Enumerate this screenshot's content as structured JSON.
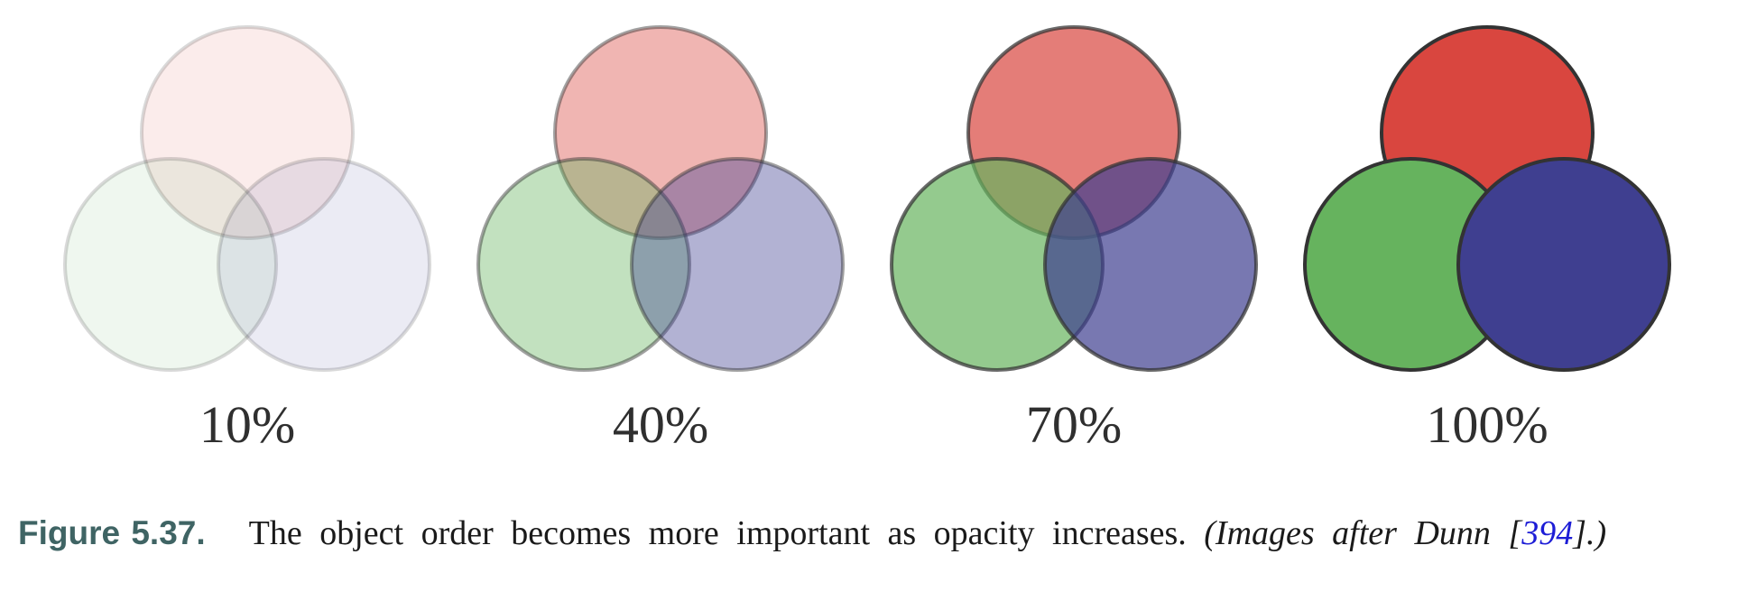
{
  "colors": {
    "red": "#d9463f",
    "green": "#66b35e",
    "blue": "#3f3f90",
    "outline": "#333333"
  },
  "panels": [
    {
      "label": "10%",
      "opacity": 0.1
    },
    {
      "label": "40%",
      "opacity": 0.4
    },
    {
      "label": "70%",
      "opacity": 0.7
    },
    {
      "label": "100%",
      "opacity": 1.0
    }
  ],
  "caption": {
    "figure_number": "Figure 5.37.",
    "text": "The object order becomes more important as opacity increases.",
    "credit_open": "(Images after Dunn [",
    "citation": "394",
    "credit_close": "].)"
  }
}
